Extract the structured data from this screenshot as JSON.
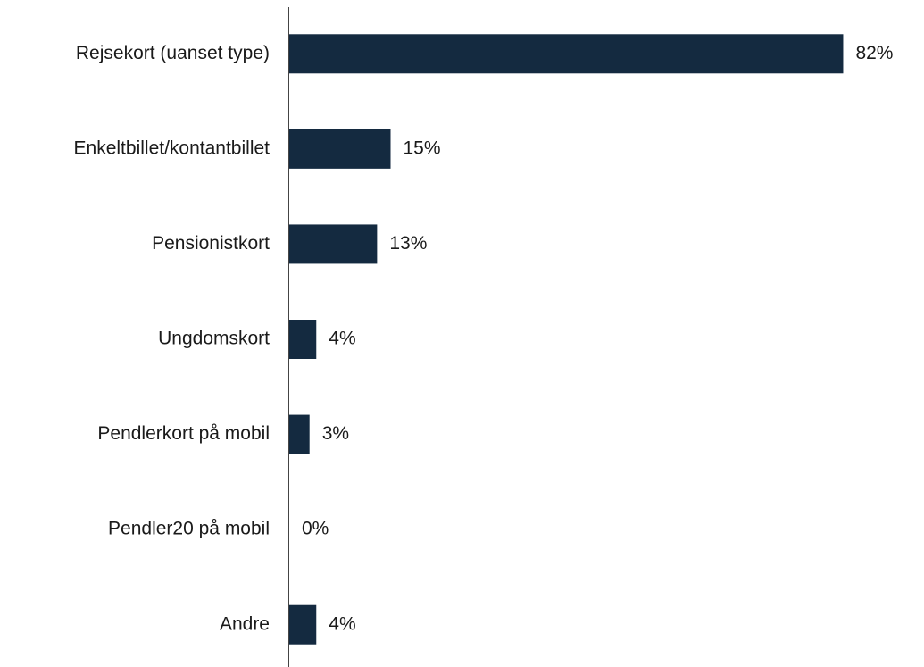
{
  "chart_data": {
    "type": "hbar",
    "categories": [
      "Rejsekort (uanset type)",
      "Enkeltbillet/kontantbillet",
      "Pensionistkort",
      "Ungdomskort",
      "Pendlerkort på mobil",
      "Pendler20 på mobil",
      "Andre"
    ],
    "values": [
      82,
      15,
      13,
      4,
      3,
      0,
      4
    ],
    "value_labels": [
      "82%",
      "15%",
      "13%",
      "4%",
      "3%",
      "0%",
      "4%"
    ],
    "color": "#142a40",
    "xlim": [
      0,
      90
    ]
  }
}
